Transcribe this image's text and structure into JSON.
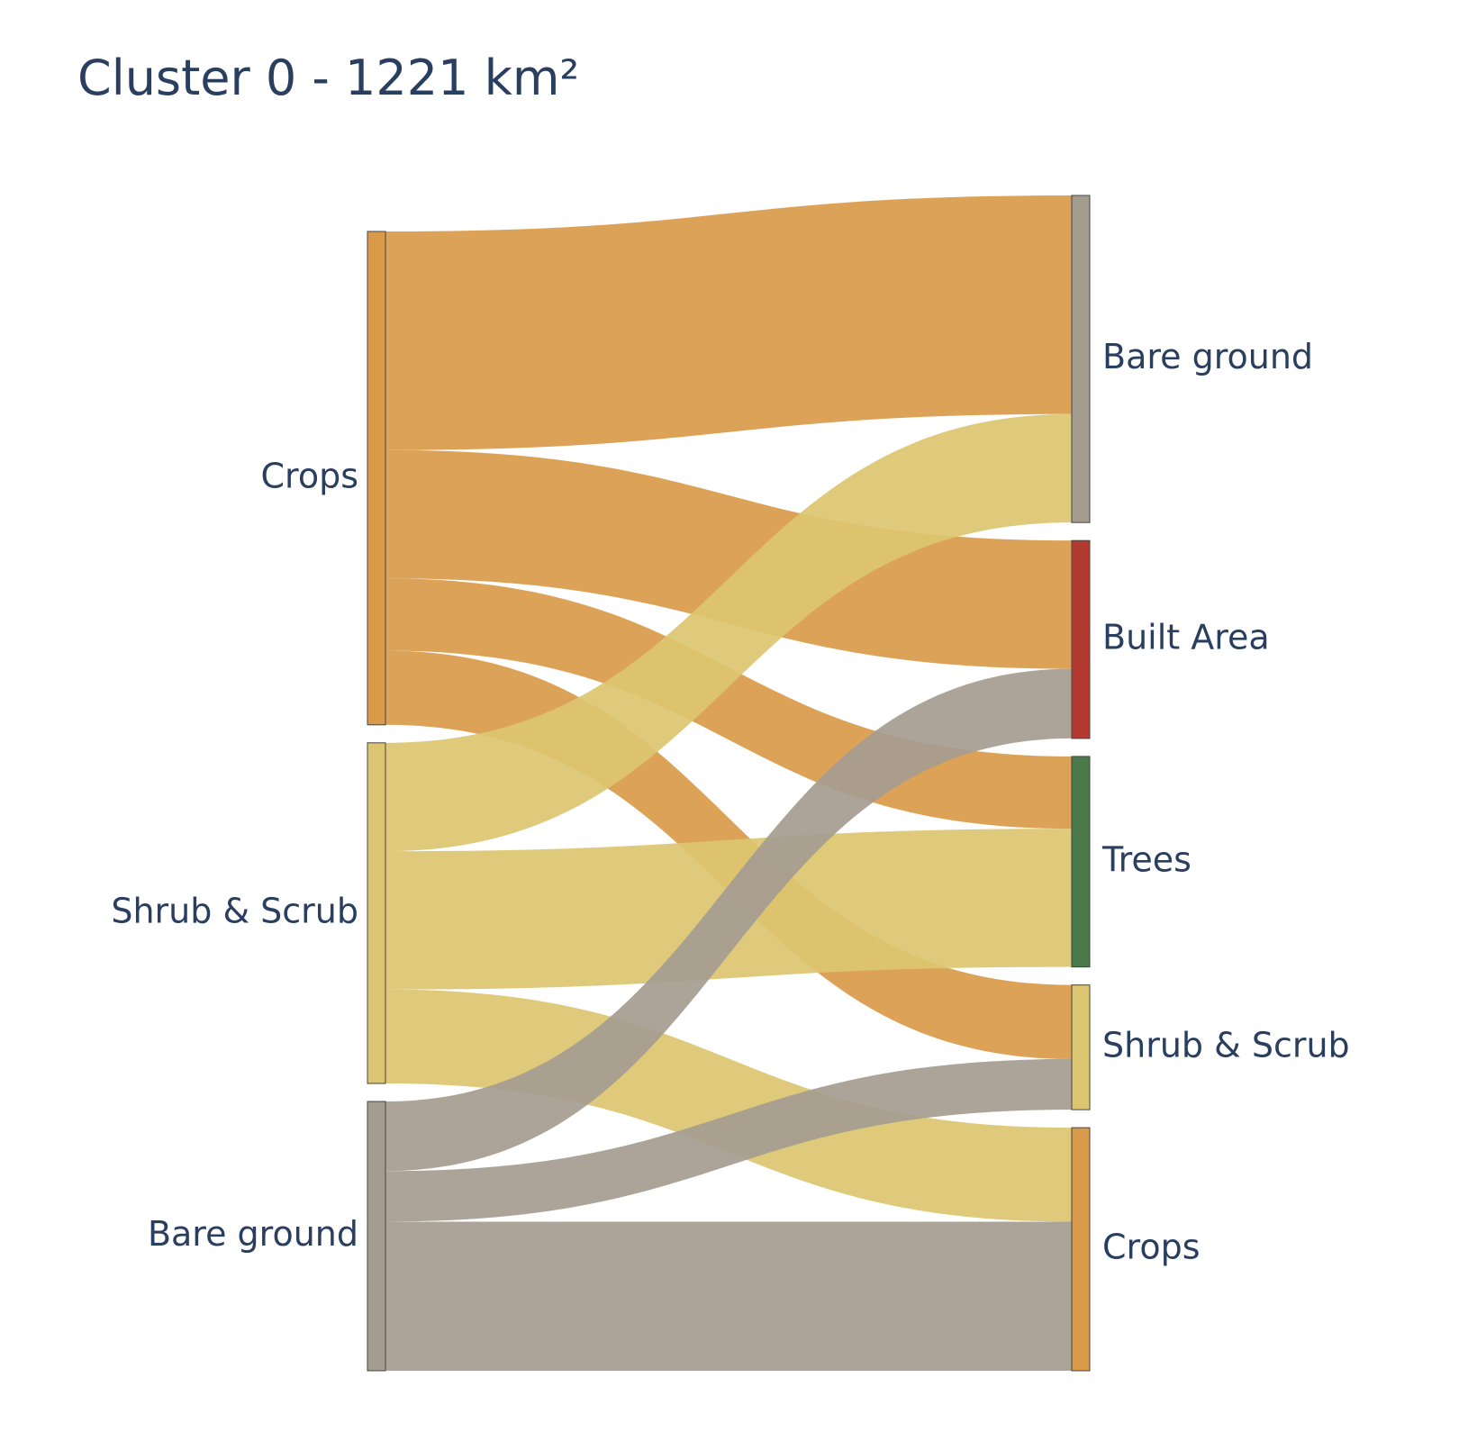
{
  "chart_data": {
    "type": "sankey",
    "title": "Cluster 0 - 1221 km²",
    "colors": {
      "crops": "#d99a4a",
      "shrub": "#dcc570",
      "bare": "#a59c90",
      "built": "#b33a2e",
      "trees": "#4a7a4a"
    },
    "sources": [
      {
        "id": "src-crops",
        "label": "Crops",
        "color": "#d99a4a"
      },
      {
        "id": "src-shrub",
        "label": "Shrub & Scrub",
        "color": "#dcc570"
      },
      {
        "id": "src-bare",
        "label": "Bare ground",
        "color": "#a59c90"
      }
    ],
    "targets": [
      {
        "id": "tgt-bare",
        "label": "Bare ground",
        "color": "#a59c90"
      },
      {
        "id": "tgt-built",
        "label": "Built Area",
        "color": "#b33a2e"
      },
      {
        "id": "tgt-trees",
        "label": "Trees",
        "color": "#4a7a4a"
      },
      {
        "id": "tgt-shrub",
        "label": "Shrub & Scrub",
        "color": "#dcc570"
      },
      {
        "id": "tgt-crops",
        "label": "Crops",
        "color": "#d99a4a"
      }
    ],
    "links": [
      {
        "source": "src-crops",
        "target": "tgt-bare",
        "value": 242
      },
      {
        "source": "src-crops",
        "target": "tgt-built",
        "value": 142
      },
      {
        "source": "src-crops",
        "target": "tgt-trees",
        "value": 80
      },
      {
        "source": "src-crops",
        "target": "tgt-shrub",
        "value": 82
      },
      {
        "source": "src-shrub",
        "target": "tgt-bare",
        "value": 120
      },
      {
        "source": "src-shrub",
        "target": "tgt-trees",
        "value": 153
      },
      {
        "source": "src-shrub",
        "target": "tgt-crops",
        "value": 104
      },
      {
        "source": "src-bare",
        "target": "tgt-built",
        "value": 77
      },
      {
        "source": "src-bare",
        "target": "tgt-shrub",
        "value": 56
      },
      {
        "source": "src-bare",
        "target": "tgt-crops",
        "value": 165
      }
    ]
  }
}
